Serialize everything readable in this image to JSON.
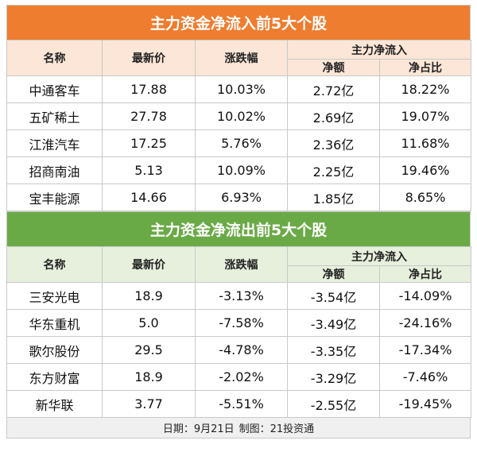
{
  "inflow": {
    "title": "主力资金净流入前5大个股",
    "headers": {
      "name": "名称",
      "price": "最新价",
      "change": "涨跌幅",
      "group": "主力净流入",
      "net": "净额",
      "ratio": "净占比"
    },
    "rows": [
      {
        "name": "中通客车",
        "price": "17.88",
        "change": "10.03%",
        "net": "2.72亿",
        "ratio": "18.22%"
      },
      {
        "name": "五矿稀土",
        "price": "27.78",
        "change": "10.02%",
        "net": "2.69亿",
        "ratio": "19.07%"
      },
      {
        "name": "江淮汽车",
        "price": "17.25",
        "change": "5.76%",
        "net": "2.36亿",
        "ratio": "11.68%"
      },
      {
        "name": "招商南油",
        "price": "5.13",
        "change": "10.09%",
        "net": "2.25亿",
        "ratio": "19.46%"
      },
      {
        "name": "宝丰能源",
        "price": "14.66",
        "change": "6.93%",
        "net": "1.85亿",
        "ratio": "8.65%"
      }
    ]
  },
  "outflow": {
    "title": "主力资金净流出前5大个股",
    "headers": {
      "name": "名称",
      "price": "最新价",
      "change": "涨跌幅",
      "group": "主力净流入",
      "net": "净额",
      "ratio": "净占比"
    },
    "rows": [
      {
        "name": "三安光电",
        "price": "18.9",
        "change": "-3.13%",
        "net": "-3.54亿",
        "ratio": "-14.09%"
      },
      {
        "name": "华东重机",
        "price": "5.0",
        "change": "-7.58%",
        "net": "-3.49亿",
        "ratio": "-24.16%"
      },
      {
        "name": "歌尔股份",
        "price": "29.5",
        "change": "-4.78%",
        "net": "-3.35亿",
        "ratio": "-17.34%"
      },
      {
        "name": "东方财富",
        "price": "18.9",
        "change": "-2.02%",
        "net": "-3.29亿",
        "ratio": "-7.46%"
      },
      {
        "name": "新华联",
        "price": "3.77",
        "change": "-5.51%",
        "net": "-2.55亿",
        "ratio": "-19.45%"
      }
    ]
  },
  "footer": {
    "date": "日期：9月21日",
    "credit": "制图：21投资通"
  },
  "colors": {
    "inflow_accent": "#ee7d2f",
    "outflow_accent": "#6aaa46"
  }
}
